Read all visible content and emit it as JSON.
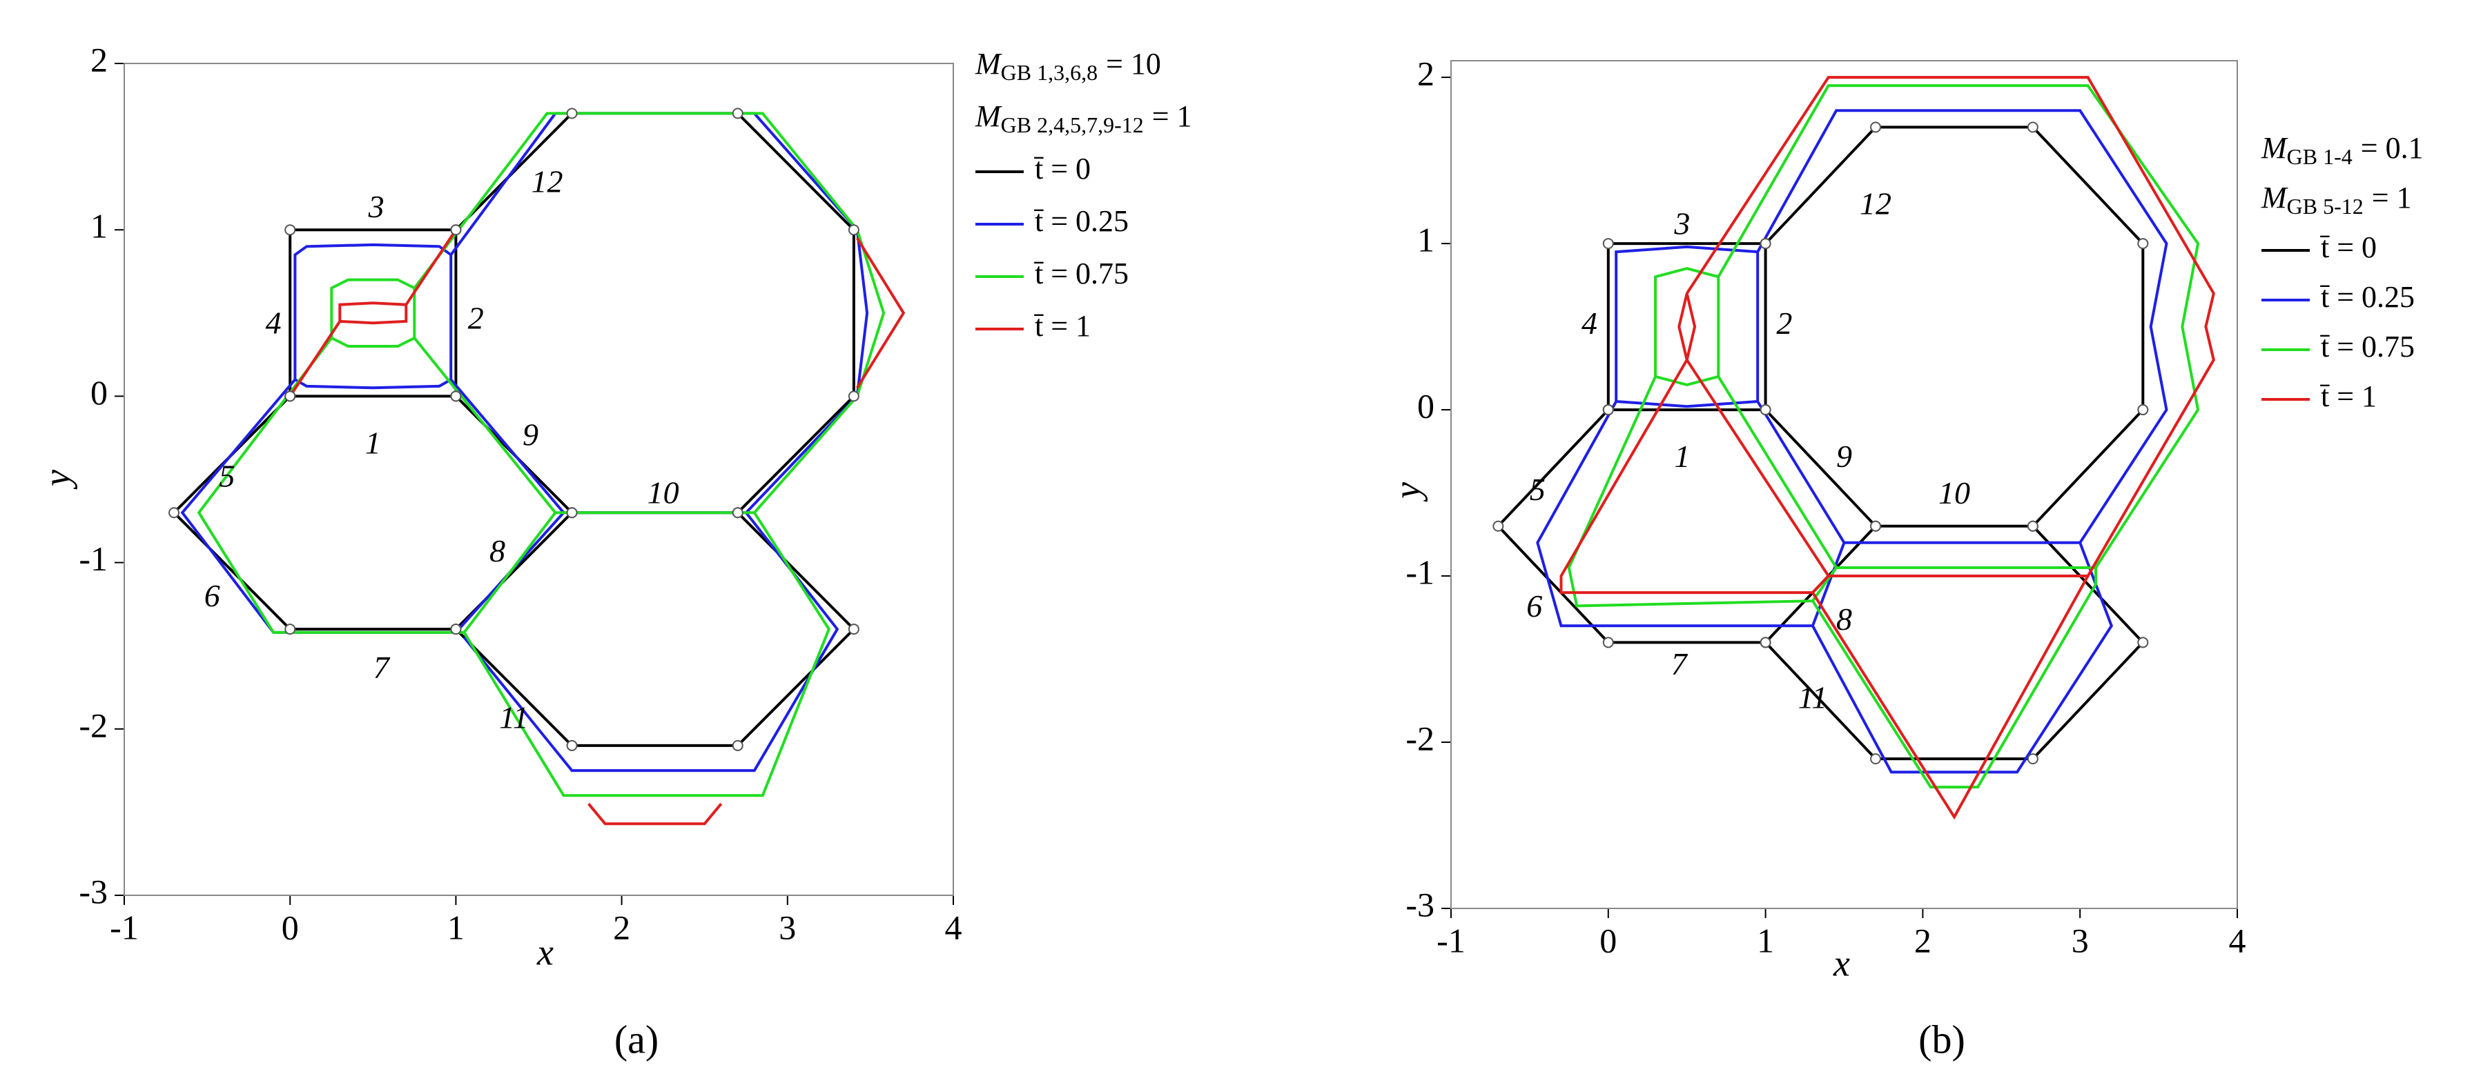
{
  "chart_data": [
    {
      "type": "line",
      "caption": "(a)",
      "xlabel": "x",
      "ylabel": "y",
      "xlim": [
        -1,
        4
      ],
      "ylim": [
        -3,
        2
      ],
      "xticks": [
        -1,
        0,
        1,
        2,
        3,
        4
      ],
      "yticks": [
        -3,
        -2,
        -1,
        0,
        1,
        2
      ],
      "legend_title": [
        {
          "symbol": "M",
          "subscript": "GB 1,3,6,8",
          "text": "= 10"
        },
        {
          "symbol": "M",
          "subscript": "GB 2,4,5,7,9-12",
          "text": "= 1"
        }
      ],
      "annotations": [
        "1",
        "2",
        "3",
        "4",
        "5",
        "6",
        "7",
        "8",
        "9",
        "10",
        "11",
        "12"
      ],
      "series": [
        {
          "name": "t̄ = 0",
          "color": "#000000",
          "x": [
            0,
            1,
            1,
            0,
            0,
            null,
            1,
            1.7,
            2.7,
            3.4,
            3.4,
            2.7,
            1.7,
            1,
            null,
            0,
            -0.7,
            0,
            1,
            1.7,
            null,
            2.7,
            3.4,
            2.7,
            1.7,
            1
          ],
          "values": [
            0,
            0,
            1,
            1,
            0,
            null,
            1,
            1.7,
            1.7,
            1,
            0,
            -0.7,
            -0.7,
            0,
            null,
            0,
            -0.7,
            -1.4,
            -1.4,
            -0.7,
            null,
            -0.7,
            -1.4,
            -2.1,
            -2.1,
            -1.4
          ]
        },
        {
          "name": "t̄ = 0.25",
          "color": "#1f1fe6",
          "x": [
            0.03,
            0.03,
            0.1,
            0.5,
            0.9,
            0.97,
            0.97,
            0.9,
            0.5,
            0.1,
            0.03,
            null,
            0.97,
            1.6,
            2.8,
            3.42,
            3.48,
            3.42,
            2.75,
            1.65,
            0.97,
            null,
            0.03,
            -0.65,
            -0.1,
            1.0,
            1.65,
            null,
            2.75,
            3.3,
            2.8,
            1.7,
            1.05
          ],
          "values": [
            0.1,
            0.85,
            0.9,
            0.91,
            0.9,
            0.85,
            0.1,
            0.06,
            0.05,
            0.06,
            0.1,
            null,
            0.85,
            1.7,
            1.7,
            1.0,
            0.5,
            0,
            -0.7,
            -0.7,
            0.1,
            null,
            0.1,
            -0.7,
            -1.42,
            -1.42,
            -0.7,
            null,
            -0.7,
            -1.4,
            -2.25,
            -2.25,
            -1.45
          ]
        },
        {
          "name": "t̄ = 0.75",
          "color": "#22dd22",
          "x": [
            0.25,
            0.25,
            0.35,
            0.65,
            0.75,
            0.75,
            0.65,
            0.35,
            0.25,
            null,
            0.75,
            1.55,
            2.85,
            3.42,
            3.58,
            3.42,
            2.8,
            1.6,
            0.75,
            null,
            0.25,
            -0.55,
            -0.1,
            1.05,
            1.6,
            null,
            2.8,
            3.25,
            2.85,
            1.65,
            1.05
          ],
          "values": [
            0.35,
            0.65,
            0.7,
            0.7,
            0.65,
            0.35,
            0.3,
            0.3,
            0.35,
            null,
            0.65,
            1.7,
            1.7,
            1.0,
            0.5,
            0,
            -0.7,
            -0.7,
            0.35,
            null,
            0.35,
            -0.7,
            -1.42,
            -1.42,
            -0.7,
            null,
            -0.7,
            -1.4,
            -2.4,
            -2.4,
            -1.42
          ]
        },
        {
          "name": "t̄ = 1",
          "color": "#e01e1e",
          "x": [
            0.3,
            0.3,
            0.5,
            0.7,
            0.7,
            0.5,
            0.3,
            null,
            0.7,
            1,
            null,
            0.3,
            0,
            null,
            3.42,
            3.7,
            3.42,
            null,
            1.8,
            1.9,
            2.5,
            2.6
          ],
          "values": [
            0.45,
            0.55,
            0.56,
            0.55,
            0.45,
            0.44,
            0.45,
            null,
            0.55,
            1,
            null,
            0.45,
            0,
            null,
            0.95,
            0.5,
            0.05,
            null,
            -2.45,
            -2.57,
            -2.57,
            -2.45
          ]
        }
      ]
    },
    {
      "type": "line",
      "caption": "(b)",
      "xlabel": "x",
      "ylabel": "y",
      "xlim": [
        -1,
        4
      ],
      "ylim": [
        -3,
        2.1
      ],
      "xticks": [
        -1,
        0,
        1,
        2,
        3,
        4
      ],
      "yticks": [
        -3,
        -2,
        -1,
        0,
        1,
        2
      ],
      "legend_title": [
        {
          "symbol": "M",
          "subscript": "GB 1-4",
          "text": "= 0.1"
        },
        {
          "symbol": "M",
          "subscript": "GB 5-12",
          "text": "= 1"
        }
      ],
      "annotations": [
        "1",
        "2",
        "3",
        "4",
        "5",
        "6",
        "7",
        "8",
        "9",
        "10",
        "11",
        "12"
      ],
      "series": [
        {
          "name": "t̄ = 0",
          "color": "#000000",
          "x": [
            0,
            1,
            1,
            0,
            0,
            null,
            1,
            1.7,
            2.7,
            3.4,
            3.4,
            2.7,
            1.7,
            1,
            null,
            0,
            -0.7,
            0,
            1,
            1.7,
            null,
            2.7,
            3.4,
            2.7,
            1.7,
            1
          ],
          "values": [
            0,
            0,
            1,
            1,
            0,
            null,
            1,
            1.7,
            1.7,
            1,
            0,
            -0.7,
            -0.7,
            0,
            null,
            0,
            -0.7,
            -1.4,
            -1.4,
            -0.7,
            null,
            -0.7,
            -1.4,
            -2.1,
            -2.1,
            -1.4
          ]
        },
        {
          "name": "t̄ = 0.25",
          "color": "#1f1fe6",
          "x": [
            0.05,
            0.05,
            0.5,
            0.95,
            0.95,
            0.5,
            0.05,
            null,
            0.95,
            1.45,
            3.0,
            3.55,
            3.45,
            3.55,
            3.0,
            1.5,
            0.95,
            null,
            0.05,
            -0.45,
            -0.3,
            1.3,
            1.5,
            null,
            3.0,
            3.2,
            2.6,
            1.8,
            1.3
          ],
          "values": [
            0.05,
            0.95,
            0.98,
            0.95,
            0.05,
            0.02,
            0.05,
            null,
            0.95,
            1.8,
            1.8,
            1.0,
            0.5,
            0,
            -0.8,
            -0.8,
            0.05,
            null,
            0.05,
            -0.8,
            -1.3,
            -1.3,
            -0.8,
            null,
            -0.8,
            -1.3,
            -2.18,
            -2.18,
            -1.3
          ]
        },
        {
          "name": "t̄ = 0.75",
          "color": "#22dd22",
          "x": [
            0.3,
            0.3,
            0.5,
            0.7,
            0.7,
            0.5,
            0.3,
            null,
            0.7,
            1.4,
            3.05,
            3.75,
            3.65,
            3.75,
            3.1,
            1.45,
            0.7,
            null,
            0.3,
            -0.25,
            -0.2,
            1.3,
            1.45,
            null,
            3.1,
            3.1,
            2.35,
            2.05,
            1.3
          ],
          "values": [
            0.2,
            0.8,
            0.85,
            0.8,
            0.2,
            0.15,
            0.2,
            null,
            0.8,
            1.95,
            1.95,
            1.0,
            0.5,
            0,
            -0.95,
            -0.95,
            0.2,
            null,
            0.2,
            -0.95,
            -1.18,
            -1.15,
            -0.95,
            null,
            -0.95,
            -1.05,
            -2.27,
            -2.27,
            -1.15
          ]
        },
        {
          "name": "t̄ = 1",
          "color": "#e01e1e",
          "x": [
            0.5,
            0.45,
            0.5,
            0.55,
            0.5,
            null,
            0.5,
            1.4,
            3.05,
            3.85,
            3.8,
            3.85,
            3.05,
            1.4,
            0.5,
            null,
            0.5,
            -0.3,
            -0.3,
            1.3,
            1.4,
            null,
            1.3,
            2.2,
            3.05
          ],
          "values": [
            0.3,
            0.5,
            0.7,
            0.5,
            0.3,
            null,
            0.7,
            2.0,
            2.0,
            0.7,
            0.5,
            0.3,
            -1.0,
            -1.0,
            0.3,
            null,
            0.3,
            -1.0,
            -1.1,
            -1.1,
            -1.0,
            null,
            -1.1,
            -2.45,
            -1.0
          ]
        }
      ]
    }
  ]
}
